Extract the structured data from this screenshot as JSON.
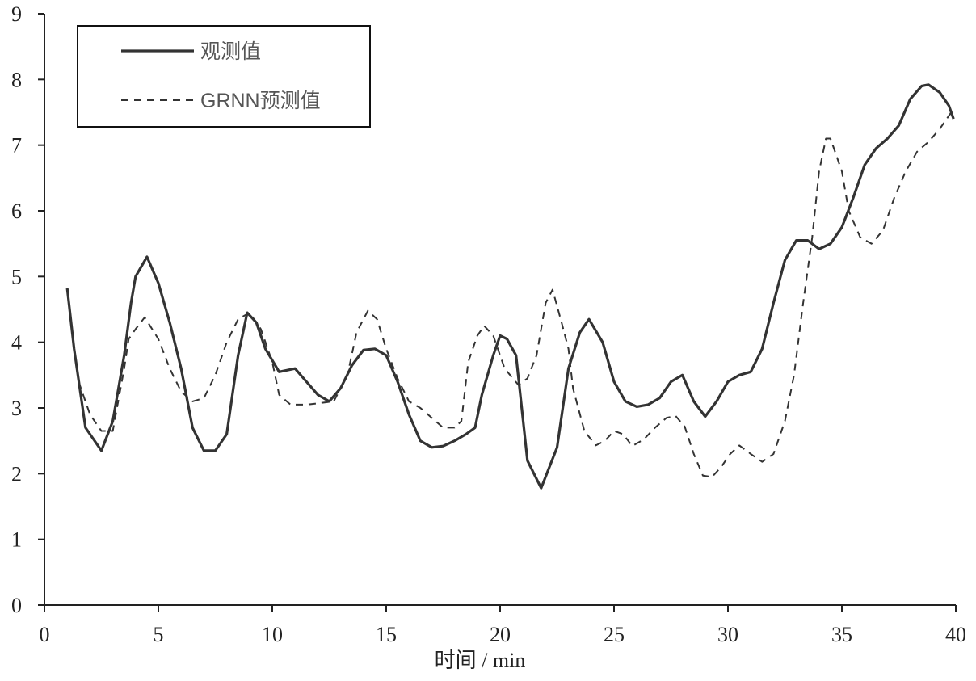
{
  "chart_data": {
    "type": "line",
    "xlabel": "时间 / min",
    "xlim": [
      0,
      40
    ],
    "xticks": [
      0,
      5,
      10,
      15,
      20,
      25,
      30,
      35,
      40
    ],
    "ylim": [
      0,
      9
    ],
    "yticks": [
      0,
      1,
      2,
      3,
      4,
      5,
      6,
      7,
      8,
      9
    ],
    "grid": false,
    "legend": "upper left",
    "series": [
      {
        "name": "观测值",
        "color": "#333333",
        "style": "solid",
        "x": [
          1.0,
          1.3,
          1.8,
          2.5,
          3.0,
          3.5,
          3.8,
          4.0,
          4.5,
          5.0,
          5.5,
          6.0,
          6.5,
          7.0,
          7.5,
          8.0,
          8.5,
          8.9,
          9.3,
          9.7,
          10.3,
          11.0,
          11.5,
          12.0,
          12.5,
          13.0,
          13.5,
          14.0,
          14.5,
          15.0,
          15.5,
          16.0,
          16.5,
          17.0,
          17.5,
          18.0,
          18.5,
          18.9,
          19.2,
          19.7,
          20.0,
          20.3,
          20.7,
          21.2,
          21.8,
          22.5,
          23.0,
          23.5,
          23.9,
          24.5,
          25.0,
          25.5,
          26.0,
          26.5,
          27.0,
          27.5,
          28.0,
          28.5,
          29.0,
          29.5,
          30.0,
          30.5,
          31.0,
          31.5,
          32.0,
          32.5,
          33.0,
          33.5,
          34.0,
          34.5,
          35.0,
          35.5,
          36.0,
          36.5,
          37.0,
          37.5,
          38.0,
          38.5,
          38.8,
          39.3,
          39.7,
          39.9
        ],
        "values": [
          4.82,
          3.9,
          2.7,
          2.35,
          2.8,
          3.8,
          4.6,
          5.0,
          5.3,
          4.9,
          4.3,
          3.6,
          2.7,
          2.35,
          2.35,
          2.6,
          3.8,
          4.45,
          4.3,
          3.9,
          3.55,
          3.6,
          3.4,
          3.2,
          3.1,
          3.3,
          3.65,
          3.88,
          3.9,
          3.8,
          3.4,
          2.9,
          2.5,
          2.4,
          2.42,
          2.5,
          2.6,
          2.7,
          3.2,
          3.8,
          4.1,
          4.05,
          3.8,
          2.2,
          1.78,
          2.4,
          3.6,
          4.15,
          4.35,
          4.0,
          3.4,
          3.1,
          3.02,
          3.05,
          3.15,
          3.4,
          3.5,
          3.1,
          2.87,
          3.1,
          3.4,
          3.5,
          3.55,
          3.9,
          4.6,
          5.25,
          5.55,
          5.55,
          5.42,
          5.5,
          5.75,
          6.2,
          6.7,
          6.95,
          7.1,
          7.3,
          7.7,
          7.9,
          7.92,
          7.8,
          7.6,
          7.4
        ]
      },
      {
        "name": "GRNN预测值",
        "color": "#333333",
        "style": "dashed",
        "x": [
          1.5,
          2.0,
          2.5,
          3.0,
          3.5,
          3.7,
          4.0,
          4.4,
          5.0,
          5.5,
          6.0,
          6.5,
          7.0,
          7.5,
          8.0,
          8.5,
          9.0,
          9.5,
          10.0,
          10.3,
          10.8,
          11.5,
          12.0,
          12.7,
          13.3,
          13.7,
          14.2,
          14.6,
          15.0,
          15.5,
          16.0,
          16.5,
          17.0,
          17.5,
          18.0,
          18.3,
          18.6,
          19.0,
          19.3,
          19.7,
          20.2,
          20.8,
          21.2,
          21.6,
          22.0,
          22.3,
          22.7,
          23.0,
          23.2,
          23.7,
          24.2,
          24.6,
          25.0,
          25.4,
          25.8,
          26.3,
          26.8,
          27.3,
          27.7,
          28.1,
          28.5,
          28.9,
          29.3,
          29.7,
          30.1,
          30.5,
          31.0,
          31.5,
          32.0,
          32.5,
          32.9,
          33.3,
          33.7,
          34.0,
          34.3,
          34.5,
          35.0,
          35.3,
          35.8,
          36.3,
          36.8,
          37.3,
          37.8,
          38.3,
          38.8,
          39.3,
          39.8
        ],
        "values": [
          3.4,
          2.9,
          2.65,
          2.65,
          3.6,
          4.05,
          4.2,
          4.38,
          4.05,
          3.6,
          3.25,
          3.1,
          3.15,
          3.5,
          4.0,
          4.35,
          4.45,
          4.2,
          3.7,
          3.2,
          3.05,
          3.05,
          3.07,
          3.1,
          3.5,
          4.15,
          4.48,
          4.35,
          3.9,
          3.45,
          3.1,
          3.0,
          2.85,
          2.7,
          2.7,
          2.8,
          3.7,
          4.1,
          4.25,
          4.1,
          3.6,
          3.35,
          3.45,
          3.8,
          4.6,
          4.8,
          4.3,
          3.9,
          3.3,
          2.65,
          2.43,
          2.5,
          2.65,
          2.6,
          2.42,
          2.52,
          2.7,
          2.85,
          2.88,
          2.72,
          2.3,
          1.97,
          1.95,
          2.1,
          2.3,
          2.43,
          2.3,
          2.18,
          2.3,
          2.8,
          3.5,
          4.6,
          5.6,
          6.6,
          7.1,
          7.1,
          6.6,
          6.0,
          5.6,
          5.5,
          5.7,
          6.2,
          6.6,
          6.9,
          7.05,
          7.25,
          7.5
        ]
      }
    ]
  }
}
